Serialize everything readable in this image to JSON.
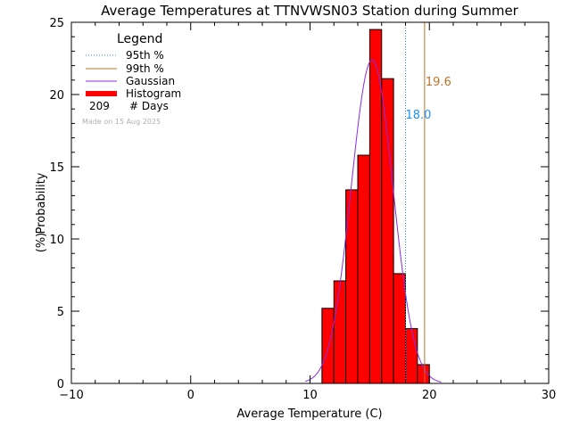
{
  "chart_data": {
    "type": "bar",
    "title": "Average Temperatures at TTNVWSN03 Station during Summer",
    "xlabel": "Average Temperature (C)",
    "ylabel_line1": "Probability",
    "ylabel_line2": "(%)",
    "xlim": [
      -10,
      30
    ],
    "ylim": [
      0,
      25
    ],
    "x_ticks": [
      -10,
      0,
      10,
      20,
      30
    ],
    "y_ticks": [
      0,
      5,
      10,
      15,
      20,
      25
    ],
    "bin_width": 1,
    "bins": [
      {
        "x0": 11,
        "value": 5.2
      },
      {
        "x0": 12,
        "value": 7.1
      },
      {
        "x0": 13,
        "value": 13.4
      },
      {
        "x0": 14,
        "value": 15.8
      },
      {
        "x0": 15,
        "value": 24.5
      },
      {
        "x0": 16,
        "value": 21.1
      },
      {
        "x0": 17,
        "value": 7.6
      },
      {
        "x0": 18,
        "value": 3.8
      },
      {
        "x0": 19,
        "value": 1.3
      }
    ],
    "gaussian": {
      "mean": 15.2,
      "sd": 1.75,
      "peak": 22.4,
      "range": [
        9.6,
        21.0
      ]
    },
    "p95": {
      "value": 18.0,
      "label": "18.0"
    },
    "p99": {
      "value": 19.6,
      "label": "19.6"
    },
    "legend": {
      "title": "Legend",
      "p95_label": "95th %",
      "p99_label": "99th %",
      "gaussian_label": "Gaussian",
      "histogram_label": "Histogram",
      "days_count": "209",
      "days_label": "# Days",
      "made_on": "Made on 15 Aug 2025"
    },
    "colors": {
      "histogram": "#ff0000",
      "gaussian": "#8a2be2",
      "p95": "#1e90ff",
      "p99": "#b8742a",
      "p95_label": "#1e90ff",
      "p99_label": "#b8742a"
    }
  }
}
